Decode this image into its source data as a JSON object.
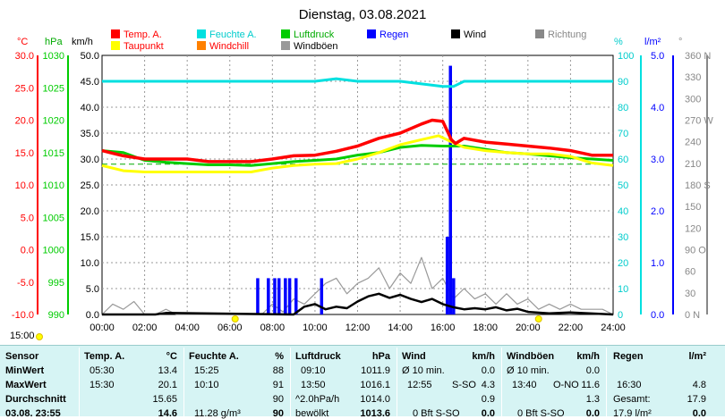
{
  "chart_data": {
    "type": "line",
    "title": "Dienstag, 03.08.2021",
    "x_ticks": [
      "00:00",
      "02:00",
      "04:00",
      "06:00",
      "08:00",
      "10:00",
      "12:00",
      "14:00",
      "16:00",
      "18:00",
      "20:00",
      "22:00",
      "24:00"
    ],
    "axes": {
      "temp": {
        "unit": "°C",
        "range": [
          -10,
          30
        ],
        "ticks": [
          "30.0",
          "25.0",
          "20.0",
          "15.0",
          "10.0",
          "5.0",
          "0.0",
          "-5.0",
          "-10.0"
        ],
        "color": "#ff0000"
      },
      "pressure": {
        "unit": "hPa",
        "range": [
          990,
          1030
        ],
        "ticks": [
          "1030",
          "1025",
          "1020",
          "1015",
          "1010",
          "1005",
          "1000",
          "995",
          "990"
        ],
        "color": "#00cc00"
      },
      "wind": {
        "unit": "km/h",
        "range": [
          0,
          50
        ],
        "ticks": [
          "50.0",
          "45.0",
          "40.0",
          "35.0",
          "30.0",
          "25.0",
          "20.0",
          "15.0",
          "10.0",
          "5.0",
          "0.0"
        ],
        "color": "#000000"
      },
      "humidity": {
        "unit": "%",
        "range": [
          0,
          100
        ],
        "ticks": [
          "100",
          "90",
          "80",
          "70",
          "60",
          "50",
          "40",
          "30",
          "20",
          "10",
          "0"
        ],
        "color": "#00cccc"
      },
      "rain": {
        "unit": "l/m²",
        "range": [
          0,
          5
        ],
        "ticks": [
          "5.0",
          "4.0",
          "3.0",
          "2.0",
          "1.0",
          "0.0"
        ],
        "color": "#0000ff"
      },
      "direction": {
        "unit": "°",
        "range": [
          0,
          360
        ],
        "ticks": [
          "360 N",
          "330",
          "300",
          "270 W",
          "240",
          "210",
          "180 S",
          "150",
          "120",
          "90 O",
          "60",
          "30",
          "0 N"
        ],
        "color": "#888888"
      }
    },
    "legend": [
      {
        "name": "Temp. A.",
        "color": "#ff0000"
      },
      {
        "name": "Feuchte A.",
        "color": "#00e0e0"
      },
      {
        "name": "Luftdruck",
        "color": "#00cc00"
      },
      {
        "name": "Regen",
        "color": "#0000ff"
      },
      {
        "name": "Wind",
        "color": "#000000"
      },
      {
        "name": "Richtung",
        "color": "#888888"
      },
      {
        "name": "Taupunkt",
        "color": "#ffff00"
      },
      {
        "name": "Windchill",
        "color": "#ff8000"
      },
      {
        "name": "Windböen",
        "color": "#999999"
      }
    ],
    "series": [
      {
        "name": "Temp. A.",
        "axis": "temp",
        "color": "#ff0000",
        "x": [
          0,
          1,
          2,
          3,
          4,
          5,
          6,
          7,
          8,
          9,
          10,
          11,
          12,
          13,
          14,
          15,
          15.5,
          16,
          16.4,
          16.6,
          17,
          18,
          19,
          20,
          21,
          22,
          23,
          24
        ],
        "y": [
          15.3,
          14.5,
          14.0,
          14.0,
          14.0,
          13.6,
          13.6,
          13.6,
          14.0,
          14.5,
          14.6,
          15.2,
          16.0,
          17.2,
          18.0,
          19.4,
          20.0,
          19.8,
          17.0,
          16.4,
          17.2,
          16.6,
          16.3,
          16.0,
          15.7,
          15.3,
          14.6,
          14.6
        ]
      },
      {
        "name": "Taupunkt",
        "axis": "temp",
        "color": "#ffff00",
        "x": [
          0,
          1,
          2,
          3,
          4,
          5,
          6,
          7,
          8,
          9,
          10,
          11,
          12,
          13,
          14,
          15,
          15.8,
          16.5,
          17,
          18,
          19,
          20,
          21,
          22,
          23,
          24
        ],
        "y": [
          13.0,
          12.2,
          12.0,
          12.0,
          12.0,
          12.0,
          12.0,
          12.0,
          12.6,
          13.0,
          13.2,
          13.3,
          14.0,
          15.0,
          16.2,
          17.0,
          17.6,
          16.5,
          15.8,
          15.3,
          15.0,
          14.8,
          14.8,
          14.4,
          13.4,
          13.0
        ]
      },
      {
        "name": "Luftdruck",
        "axis": "pressure",
        "color": "#00cc00",
        "x": [
          0,
          1,
          2,
          3,
          4,
          5,
          6,
          7,
          8,
          9,
          10,
          11,
          12,
          13,
          14,
          15,
          16,
          17,
          18,
          19,
          20,
          21,
          22,
          23,
          24
        ],
        "y": [
          1015.3,
          1015.0,
          1013.8,
          1013.5,
          1013.3,
          1013.1,
          1013.1,
          1013.0,
          1013.3,
          1013.6,
          1013.8,
          1014.0,
          1014.6,
          1015.0,
          1015.8,
          1016.1,
          1016.0,
          1016.0,
          1015.5,
          1015.0,
          1014.8,
          1014.5,
          1014.2,
          1014.0,
          1013.8
        ]
      },
      {
        "name": "Feuchte A.",
        "axis": "humidity",
        "color": "#00e0e0",
        "x": [
          0,
          6,
          8,
          10,
          11,
          12,
          13,
          14,
          15,
          16,
          16.5,
          17,
          18,
          20,
          22,
          24
        ],
        "y": [
          90,
          90,
          90,
          90,
          91,
          90,
          90,
          90,
          89,
          88,
          88,
          90,
          90,
          90,
          90,
          90
        ]
      },
      {
        "name": "Wind",
        "axis": "wind",
        "color": "#000000",
        "x": [
          0,
          2.5,
          3,
          9,
          9.5,
          10,
          10.5,
          11,
          11.5,
          12,
          12.5,
          13,
          13.5,
          14,
          14.5,
          15,
          15.5,
          16,
          16.5,
          17,
          17.5,
          18,
          18.5,
          19,
          19.5,
          20,
          21,
          22,
          24
        ],
        "y": [
          0,
          0,
          0.3,
          0,
          1.5,
          2.0,
          1.0,
          1.5,
          1.2,
          2.5,
          3.5,
          4.0,
          3.2,
          3.8,
          3.0,
          2.4,
          3.0,
          2.0,
          1.4,
          1.0,
          1.2,
          1.0,
          1.4,
          0.8,
          1.1,
          0.5,
          0.2,
          0.4,
          0
        ]
      },
      {
        "name": "Windböen",
        "axis": "wind",
        "color": "#999999",
        "x": [
          0,
          0.5,
          1,
          1.5,
          2,
          2.5,
          3,
          3.5,
          4,
          4.5,
          5,
          5.5,
          6,
          6.5,
          7,
          7.5,
          8,
          8.5,
          9,
          9.5,
          10,
          10.5,
          11,
          11.5,
          12,
          12.5,
          13,
          13.5,
          14,
          14.5,
          15,
          15.5,
          16,
          16.5,
          17,
          17.5,
          18,
          18.5,
          19,
          19.5,
          20,
          20.5,
          21,
          21.5,
          22,
          22.5,
          23,
          23.5,
          24
        ],
        "y": [
          0,
          2,
          1,
          2.5,
          0,
          0,
          1,
          0,
          0,
          0,
          0,
          0,
          0,
          0,
          0,
          0,
          2,
          0.5,
          3,
          2,
          4,
          6,
          7,
          4,
          6,
          7,
          9,
          5,
          8,
          6,
          11,
          5,
          7,
          3,
          5,
          3,
          4,
          2,
          4,
          2,
          3,
          1,
          2,
          1,
          2,
          1,
          1,
          1,
          0
        ]
      },
      {
        "name": "Regen",
        "axis": "rain",
        "color": "#0000ff",
        "style": "bars",
        "x": [
          7.3,
          7.8,
          8.1,
          8.3,
          8.6,
          8.8,
          9.1,
          10.3,
          16.2,
          16.35,
          16.5
        ],
        "y": [
          0.7,
          0.7,
          0.7,
          0.7,
          0.7,
          0.7,
          0.7,
          0.7,
          1.5,
          4.8,
          0.7
        ]
      }
    ],
    "reference_lines": [
      {
        "axis": "humidity",
        "y": 58,
        "color": "#00aa00",
        "style": "dashed"
      }
    ],
    "sun_marks": [
      "06:15",
      "20:30"
    ]
  },
  "table": {
    "time_label": "15:00",
    "row_labels": {
      "header": "Sensor",
      "min": "MinWert",
      "max": "MaxWert",
      "avg": "Durchschnitt",
      "current": "03.08. 23:55"
    },
    "temp": {
      "header": "Temp. A.",
      "unit": "°C",
      "min_time": "05:30",
      "min_val": "13.4",
      "max_time": "15:30",
      "max_val": "20.1",
      "avg_val": "15.65",
      "cur_val": "14.6"
    },
    "humidity": {
      "header": "Feuchte A.",
      "unit": "%",
      "min_time": "15:25",
      "min_val": "88",
      "max_time": "10:10",
      "max_val": "91",
      "avg_val": "90",
      "cur_extra": "11.28 g/m³",
      "cur_val": "90"
    },
    "pressure": {
      "header": "Luftdruck",
      "unit": "hPa",
      "min_time": "09:10",
      "min_val": "1011.9",
      "max_time": "13:50",
      "max_val": "1016.1",
      "avg_label": "^2.0hPa/h",
      "avg_val": "1014.0",
      "cur_extra": "bewölkt",
      "cur_val": "1013.6"
    },
    "wind": {
      "header": "Wind",
      "unit": "km/h",
      "min_label": "Ø 10 min.",
      "min_val": "0.0",
      "max_time": "12:55",
      "max_dir": "S-SO",
      "max_val": "4.3",
      "avg_val": "0.9",
      "cur_extra": "0 Bft S-SO",
      "cur_val": "0.0"
    },
    "gust": {
      "header": "Windböen",
      "unit": "km/h",
      "min_label": "Ø 10 min.",
      "min_val": "0.0",
      "max_time": "13:40",
      "max_dir": "O-NO",
      "max_val": "11.6",
      "avg_val": "1.3",
      "cur_extra": "0 Bft S-SO",
      "cur_val": "0.0"
    },
    "rain": {
      "header": "Regen",
      "unit": "l/m²",
      "max_time": "16:30",
      "max_val": "4.8",
      "avg_label": "Gesamt:",
      "avg_val": "17.9",
      "cur_extra": "17.9 l/m²",
      "cur_val": "0.0"
    }
  }
}
